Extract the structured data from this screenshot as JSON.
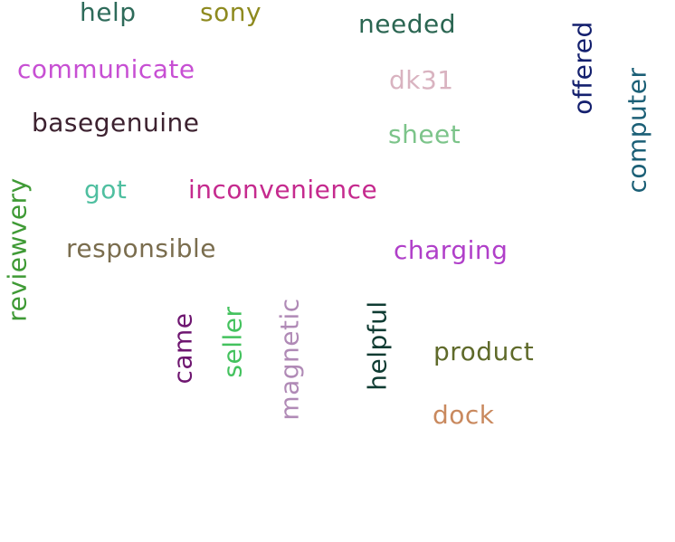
{
  "words": {
    "help": {
      "text": "help",
      "color": "#2e6b5a"
    },
    "sony": {
      "text": "sony",
      "color": "#8e8a1f"
    },
    "needed": {
      "text": "needed",
      "color": "#2b6652"
    },
    "communicate": {
      "text": "communicate",
      "color": "#c74fd3"
    },
    "dk31": {
      "text": "dk31",
      "color": "#d9b3c0"
    },
    "basegenuine": {
      "text": "basegenuine",
      "color": "#3d2230"
    },
    "sheet": {
      "text": "sheet",
      "color": "#7cc48a"
    },
    "got": {
      "text": "got",
      "color": "#4fbfa0"
    },
    "inconvenience": {
      "text": "inconvenience",
      "color": "#c52a8e"
    },
    "responsible": {
      "text": "responsible",
      "color": "#7a6d4e"
    },
    "charging": {
      "text": "charging",
      "color": "#b03fc9"
    },
    "product": {
      "text": "product",
      "color": "#5f6a2a"
    },
    "dock": {
      "text": "dock",
      "color": "#c9895e"
    },
    "offered": {
      "text": "offered",
      "color": "#14206e"
    },
    "computer": {
      "text": "computer",
      "color": "#1b5f76"
    },
    "reviewvery": {
      "text": "reviewvery",
      "color": "#3f9a35"
    },
    "came": {
      "text": "came",
      "color": "#6e1670"
    },
    "seller": {
      "text": "seller",
      "color": "#44c25e"
    },
    "magnetic": {
      "text": "magnetic",
      "color": "#b08ab6"
    },
    "helpful": {
      "text": "helpful",
      "color": "#0f3b32"
    }
  }
}
